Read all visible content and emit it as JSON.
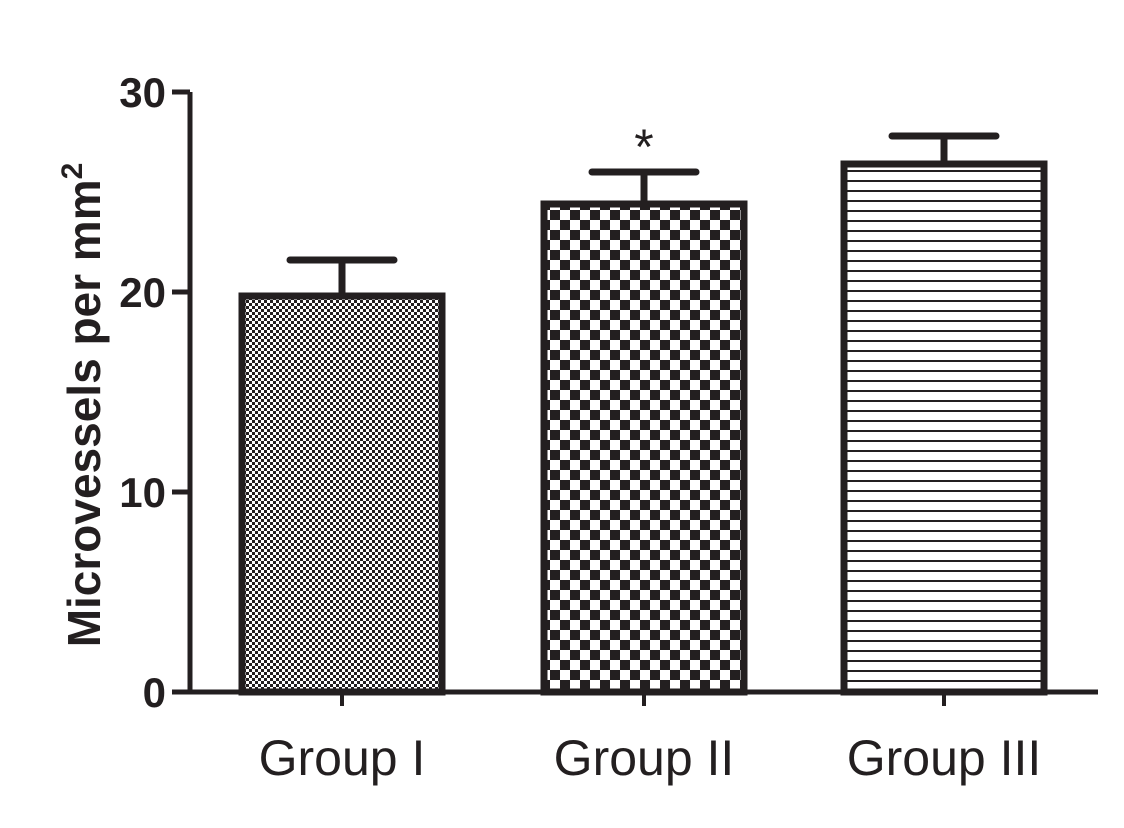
{
  "chart_data": {
    "type": "bar",
    "categories": [
      "Group I",
      "Group II",
      "Group III"
    ],
    "values": [
      19.8,
      24.4,
      26.4
    ],
    "errors": [
      1.8,
      1.6,
      1.4
    ],
    "annotations": [
      "",
      "*",
      ""
    ],
    "patterns": [
      "fine-checker",
      "coarse-checker",
      "horizontal-lines"
    ],
    "ylabel": "Microvessels per mm",
    "ylabel_superscript": "2",
    "ylim": [
      0,
      30
    ],
    "yticks": [
      "0",
      "10",
      "20",
      "30"
    ],
    "color": "#231f20",
    "grid": false
  }
}
